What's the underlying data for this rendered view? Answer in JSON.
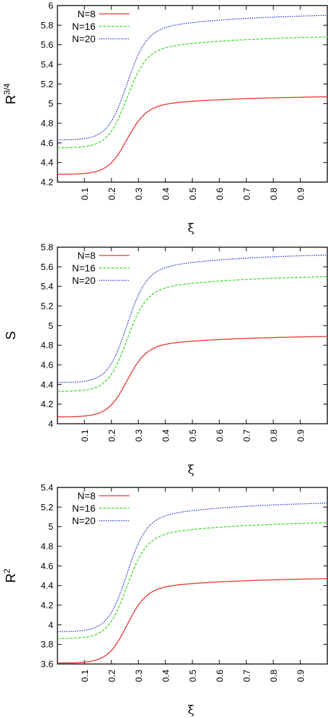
{
  "chart_data": [
    {
      "type": "line",
      "ylabel_main": "R",
      "ylabel_sup": "3/4",
      "xlabel": "ξ",
      "xlim": [
        0,
        1
      ],
      "ylim": [
        4.2,
        6
      ],
      "yticks": [
        "4.2",
        "4.4",
        "4.6",
        "4.8",
        "5",
        "5.2",
        "5.4",
        "5.6",
        "5.8",
        "6"
      ],
      "xticks": [
        "0.1",
        "0.2",
        "0.3",
        "0.4",
        "0.5",
        "0.6",
        "0.7",
        "0.8",
        "0.9"
      ],
      "legend_position": "top-left",
      "series": [
        {
          "name": "N=8",
          "color": "#e8302a",
          "style": "solid",
          "low": 4.28,
          "high": 5.07
        },
        {
          "name": "N=16",
          "color": "#3ddc2a",
          "style": "dashed",
          "low": 4.55,
          "high": 5.68
        },
        {
          "name": "N=20",
          "color": "#2233cc",
          "style": "dotted",
          "low": 4.63,
          "high": 5.9
        }
      ]
    },
    {
      "type": "line",
      "ylabel_main": "S",
      "ylabel_sup": "",
      "xlabel": "ξ",
      "xlim": [
        0,
        1
      ],
      "ylim": [
        4,
        5.8
      ],
      "yticks": [
        "4",
        "4.2",
        "4.4",
        "4.6",
        "4.8",
        "5",
        "5.2",
        "5.4",
        "5.6",
        "5.8"
      ],
      "xticks": [
        "0.1",
        "0.2",
        "0.3",
        "0.4",
        "0.5",
        "0.6",
        "0.7",
        "0.8",
        "0.9"
      ],
      "legend_position": "top-left",
      "series": [
        {
          "name": "N=8",
          "color": "#e8302a",
          "style": "solid",
          "low": 4.07,
          "high": 4.89
        },
        {
          "name": "N=16",
          "color": "#3ddc2a",
          "style": "dashed",
          "low": 4.33,
          "high": 5.5
        },
        {
          "name": "N=20",
          "color": "#2233cc",
          "style": "dotted",
          "low": 4.42,
          "high": 5.72
        }
      ]
    },
    {
      "type": "line",
      "ylabel_main": "R",
      "ylabel_sup": "2",
      "xlabel": "ξ",
      "xlim": [
        0,
        1
      ],
      "ylim": [
        3.6,
        5.4
      ],
      "yticks": [
        "3.6",
        "3.8",
        "4",
        "4.2",
        "4.4",
        "4.6",
        "4.8",
        "5",
        "5.2",
        "5.4"
      ],
      "xticks": [
        "0.1",
        "0.2",
        "0.3",
        "0.4",
        "0.5",
        "0.6",
        "0.7",
        "0.8",
        "0.9"
      ],
      "legend_position": "top-left",
      "series": [
        {
          "name": "N=8",
          "color": "#e8302a",
          "style": "solid",
          "low": 3.61,
          "high": 4.47
        },
        {
          "name": "N=16",
          "color": "#3ddc2a",
          "style": "dashed",
          "low": 3.86,
          "high": 5.04
        },
        {
          "name": "N=20",
          "color": "#2233cc",
          "style": "dotted",
          "low": 3.93,
          "high": 5.24
        }
      ]
    }
  ]
}
